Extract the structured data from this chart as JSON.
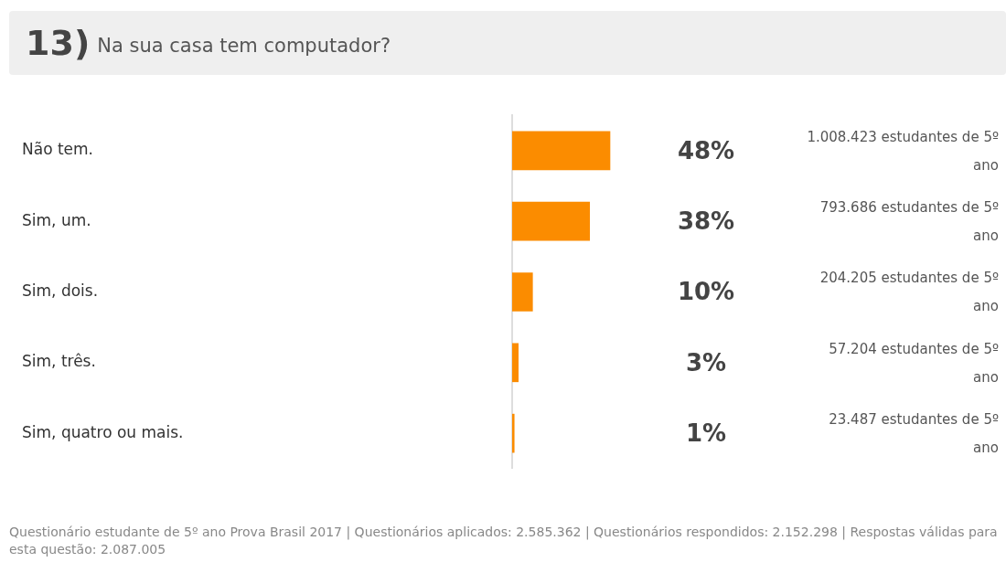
{
  "chart_data": {
    "type": "bar",
    "orientation": "horizontal",
    "title": "13)",
    "subtitle": "Na sua casa tem computador?",
    "categories": [
      "Não tem.",
      "Sim, um.",
      "Sim, dois.",
      "Sim, três.",
      "Sim, quatro ou mais."
    ],
    "values": [
      48,
      38,
      10,
      3,
      1
    ],
    "color": "#fb8c00",
    "value_labels": [
      "48%",
      "38%",
      "10%",
      "3%",
      "1%"
    ],
    "grid": false,
    "legend": false,
    "annotations": [
      "1.008.423 estudantes de 5º ano",
      "793.686 estudantes de 5º ano",
      "204.205 estudantes de 5º ano",
      "57.204 estudantes de 5º ano",
      "23.487 estudantes de 5º ano",
      "Questionário estudante de 5º ano Prova Brasil 2017 | Questionários aplicados: 2.585.362 | Questionários respondidos: 2.152.298 | Respostas válidas para esta questão: 2.087.005"
    ]
  }
}
